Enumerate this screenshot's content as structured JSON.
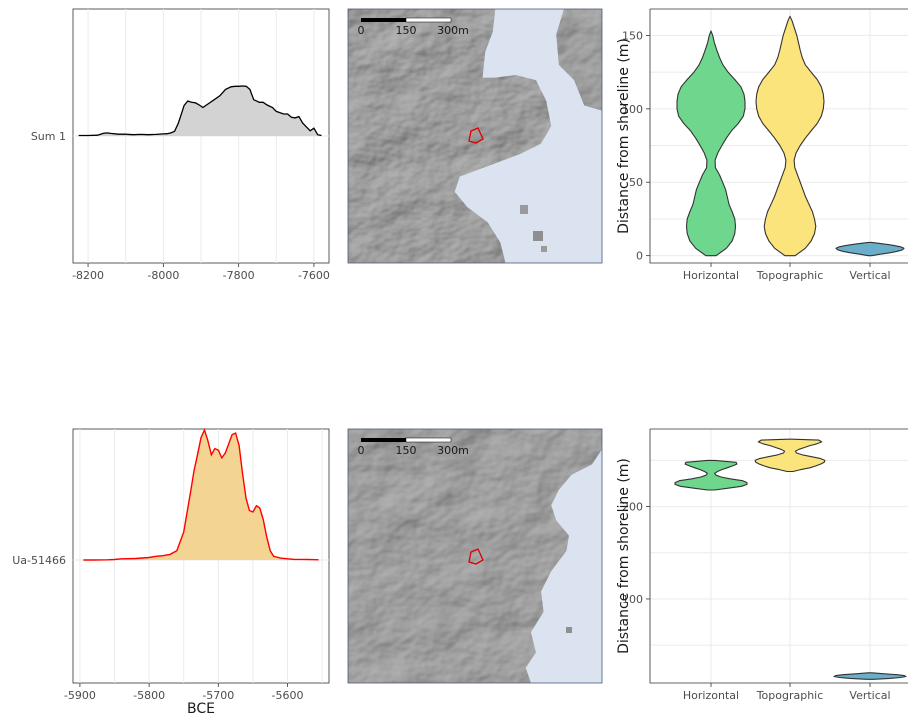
{
  "colors": {
    "horizontal": "#6fd68e",
    "topographic": "#fbe47c",
    "vertical": "#6aaec9",
    "sea": "#dbe2f0",
    "grid": "#ebebeb",
    "sum_fill": "#d3d3d3",
    "ua_fill": "#f4d492",
    "ua_line": "#ff0000"
  },
  "chart_data": [
    {
      "type": "area",
      "panel": "density-top",
      "row_label": "Sum 1",
      "xlim": [
        -8240,
        -7560
      ],
      "xticks": [
        -8200,
        -8000,
        -7800,
        -7600
      ],
      "xtick_labels": [
        "-8200",
        "-8000",
        "-7800",
        "-7600"
      ],
      "xlabel": "",
      "x": [
        -8225,
        -8200,
        -8175,
        -8160,
        -8150,
        -8140,
        -8120,
        -8100,
        -8080,
        -8060,
        -8040,
        -8020,
        -8000,
        -7990,
        -7980,
        -7970,
        -7960,
        -7950,
        -7945,
        -7935,
        -7925,
        -7915,
        -7905,
        -7895,
        -7880,
        -7865,
        -7850,
        -7835,
        -7820,
        -7810,
        -7800,
        -7790,
        -7780,
        -7770,
        -7760,
        -7745,
        -7735,
        -7725,
        -7710,
        -7700,
        -7690,
        -7680,
        -7670,
        -7660,
        -7650,
        -7640,
        -7630,
        -7620,
        -7610,
        -7600,
        -7590,
        -7580
      ],
      "values": [
        0.02,
        0.02,
        0.03,
        0.1,
        0.12,
        0.1,
        0.07,
        0.07,
        0.05,
        0.06,
        0.05,
        0.06,
        0.08,
        0.09,
        0.12,
        0.18,
        0.5,
        0.95,
        1.18,
        1.35,
        1.3,
        1.28,
        1.2,
        1.1,
        1.25,
        1.4,
        1.55,
        1.8,
        1.9,
        1.92,
        1.92,
        1.93,
        1.92,
        1.8,
        1.4,
        1.3,
        1.3,
        1.2,
        1.1,
        0.95,
        0.9,
        0.85,
        0.85,
        0.72,
        0.7,
        0.75,
        0.5,
        0.35,
        0.2,
        0.3,
        0.05,
        0.02
      ]
    },
    {
      "type": "area",
      "panel": "density-bottom",
      "row_label": "Ua-51466",
      "xlim": [
        -5910,
        -5540
      ],
      "xticks": [
        -5900,
        -5800,
        -5700,
        -5600
      ],
      "xtick_labels": [
        "-5900",
        "-5800",
        "-5700",
        "-5600"
      ],
      "xlabel": "BCE",
      "x": [
        -5895,
        -5880,
        -5860,
        -5850,
        -5840,
        -5820,
        -5800,
        -5790,
        -5780,
        -5770,
        -5760,
        -5750,
        -5740,
        -5735,
        -5730,
        -5725,
        -5720,
        -5715,
        -5710,
        -5705,
        -5700,
        -5695,
        -5690,
        -5685,
        -5680,
        -5675,
        -5670,
        -5665,
        -5660,
        -5655,
        -5650,
        -5645,
        -5640,
        -5635,
        -5630,
        -5625,
        -5620,
        -5610,
        -5600,
        -5590,
        -5580,
        -5570,
        -5560,
        -5555
      ],
      "values": [
        0,
        0,
        0.005,
        0.015,
        0.04,
        0.05,
        0.08,
        0.12,
        0.14,
        0.18,
        0.3,
        0.9,
        2.2,
        2.9,
        3.4,
        3.95,
        4.2,
        3.85,
        3.4,
        3.6,
        3.55,
        3.3,
        3.45,
        3.75,
        4.05,
        4.1,
        3.7,
        2.8,
        2.0,
        1.6,
        1.55,
        1.75,
        1.68,
        1.3,
        0.75,
        0.3,
        0.12,
        0.06,
        0.04,
        0.02,
        0.02,
        0.015,
        0.01,
        0.005
      ]
    },
    {
      "type": "violin",
      "panel": "violin-top",
      "ylabel": "Distance from shoreline (m)",
      "ylim": [
        -5,
        168
      ],
      "yticks": [
        0,
        50,
        100,
        150
      ],
      "ytick_labels": [
        "0",
        "50",
        "100",
        "150"
      ],
      "categories": [
        "Horizontal",
        "Topographic",
        "Vertical"
      ],
      "series": [
        {
          "y": [
            0,
            5,
            10,
            15,
            20,
            25,
            30,
            35,
            40,
            45,
            50,
            55,
            60,
            65,
            70,
            75,
            80,
            85,
            90,
            95,
            100,
            105,
            110,
            115,
            120,
            125,
            130,
            135,
            140,
            145,
            150,
            153
          ],
          "density": [
            0.15,
            0.45,
            0.62,
            0.7,
            0.72,
            0.7,
            0.62,
            0.53,
            0.48,
            0.43,
            0.34,
            0.25,
            0.13,
            0.12,
            0.2,
            0.32,
            0.45,
            0.6,
            0.8,
            0.95,
            1.0,
            1.0,
            0.97,
            0.88,
            0.7,
            0.5,
            0.35,
            0.25,
            0.17,
            0.1,
            0.05,
            0
          ]
        },
        {
          "y": [
            0,
            5,
            10,
            15,
            20,
            25,
            30,
            35,
            40,
            45,
            50,
            55,
            60,
            65,
            70,
            75,
            80,
            85,
            90,
            95,
            100,
            105,
            110,
            115,
            120,
            125,
            130,
            135,
            140,
            145,
            150,
            155,
            160,
            163
          ],
          "density": [
            0.15,
            0.45,
            0.62,
            0.72,
            0.76,
            0.72,
            0.66,
            0.56,
            0.46,
            0.38,
            0.3,
            0.22,
            0.14,
            0.12,
            0.18,
            0.3,
            0.45,
            0.62,
            0.8,
            0.92,
            0.98,
            1.0,
            0.98,
            0.92,
            0.8,
            0.62,
            0.45,
            0.36,
            0.3,
            0.25,
            0.2,
            0.13,
            0.06,
            0
          ]
        },
        {
          "y": [
            0,
            1,
            2,
            3,
            4,
            5,
            6,
            7,
            8,
            9
          ],
          "density": [
            0.05,
            0.3,
            0.6,
            0.8,
            0.95,
            1.0,
            0.9,
            0.7,
            0.4,
            0.05
          ]
        }
      ]
    },
    {
      "type": "violin",
      "panel": "violin-bottom",
      "ylabel": "Distance from shoreline (m)",
      "ylim": [
        9,
        284
      ],
      "yticks": [
        100,
        200
      ],
      "ytick_labels": [
        "100",
        "200"
      ],
      "categories": [
        "Horizontal",
        "Topographic",
        "Vertical"
      ],
      "series": [
        {
          "y": [
            218,
            220,
            222,
            224,
            226,
            228,
            230,
            232,
            234,
            236,
            238,
            240,
            242,
            244,
            246,
            248,
            250
          ],
          "density": [
            0.1,
            0.5,
            0.85,
            1.0,
            1.0,
            0.88,
            0.55,
            0.28,
            0.14,
            0.1,
            0.18,
            0.3,
            0.45,
            0.6,
            0.72,
            0.7,
            0.1
          ]
        },
        {
          "y": [
            238,
            240,
            242,
            244,
            246,
            248,
            250,
            252,
            254,
            256,
            258,
            260,
            262,
            264,
            266,
            268,
            270,
            272,
            273
          ],
          "density": [
            0.08,
            0.3,
            0.55,
            0.72,
            0.85,
            0.95,
            0.97,
            0.85,
            0.6,
            0.35,
            0.18,
            0.15,
            0.25,
            0.4,
            0.55,
            0.75,
            0.88,
            0.8,
            0.05
          ]
        },
        {
          "y": [
            13,
            14,
            15,
            16,
            17,
            18,
            19,
            20
          ],
          "density": [
            0.1,
            0.55,
            0.85,
            1.0,
            0.95,
            0.75,
            0.4,
            0.05
          ]
        }
      ]
    }
  ],
  "maps": [
    {
      "scalebar_labels": [
        "0",
        "150",
        "300m"
      ]
    },
    {
      "scalebar_labels": [
        "0",
        "150",
        "300m"
      ]
    }
  ]
}
